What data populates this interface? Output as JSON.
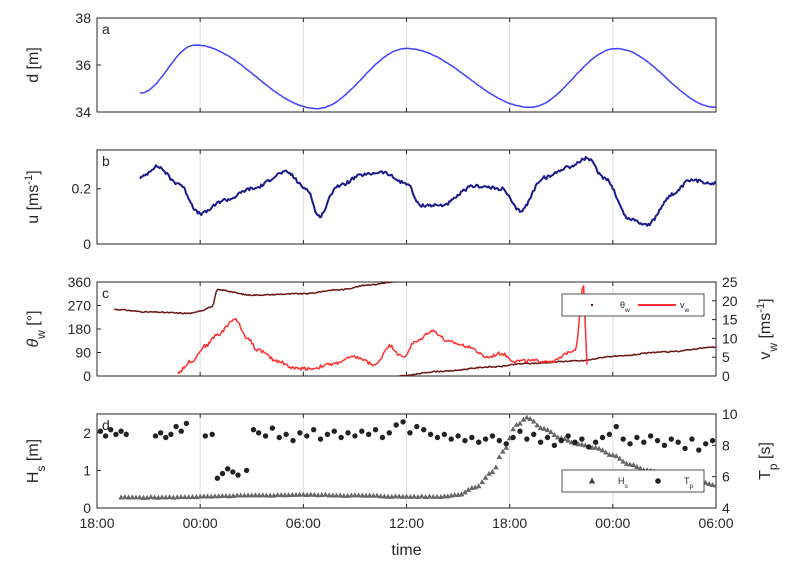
{
  "chart_data": [
    {
      "type": "line",
      "panel_label": "a",
      "ylabel": "d [m]",
      "ylim": [
        34,
        38
      ],
      "yticks": [
        "34",
        "36",
        "38"
      ],
      "grid": "vertical",
      "series": [
        {
          "color": "#4040ff",
          "x": [
            -3.5,
            -0.3,
            6.8,
            12.0,
            19.2,
            24.2,
            30.0
          ],
          "y": [
            34.8,
            36.85,
            34.15,
            36.7,
            34.2,
            36.7,
            34.2
          ]
        }
      ]
    },
    {
      "type": "line",
      "panel_label": "b",
      "ylabel": "u [ms-1]",
      "ylim": [
        0,
        0.34
      ],
      "yticks": [
        "0",
        "0.2"
      ],
      "grid": "vertical",
      "series": [
        {
          "color": "#1a1a8c",
          "x": [
            -3.5,
            -2.5,
            -1.3,
            0.0,
            1.5,
            3.0,
            5.0,
            6.2,
            6.9,
            8.0,
            9.5,
            10.5,
            12.0,
            12.8,
            14.0,
            16.0,
            17.5,
            18.6,
            20.0,
            21.5,
            22.5,
            23.5,
            25.0,
            26.0,
            27.5,
            28.5,
            30.0
          ],
          "y": [
            0.24,
            0.28,
            0.22,
            0.11,
            0.16,
            0.2,
            0.26,
            0.2,
            0.1,
            0.21,
            0.25,
            0.26,
            0.22,
            0.14,
            0.14,
            0.21,
            0.2,
            0.12,
            0.24,
            0.28,
            0.31,
            0.24,
            0.09,
            0.07,
            0.18,
            0.23,
            0.22
          ]
        }
      ]
    },
    {
      "type": "line",
      "panel_label": "c",
      "ylabel": "θw [°]",
      "ylabel2": "vw [ms-1]",
      "ylim": [
        0,
        360
      ],
      "ylim2": [
        0,
        25
      ],
      "yticks": [
        "0",
        "90",
        "180",
        "270",
        "360"
      ],
      "yticks2": [
        "0",
        "5",
        "10",
        "15",
        "20",
        "25"
      ],
      "grid": "vertical",
      "legend": {
        "position": "right",
        "entries": [
          "θw",
          "vw"
        ]
      },
      "series": [
        {
          "name": "θw",
          "axis": "left",
          "color": "#6b1515",
          "x": [
            -5.0,
            -3.0,
            -0.5,
            0.0,
            0.7,
            1.0,
            3.0,
            6.0,
            8.0,
            10.0,
            11.0,
            11.4,
            11.5,
            14.0,
            17.0,
            19.0,
            22.0,
            24.0,
            27.0,
            30.0
          ],
          "y": [
            255,
            245,
            240,
            250,
            265,
            330,
            310,
            315,
            330,
            350,
            358,
            360,
            0,
            18,
            35,
            48,
            58,
            75,
            92,
            110
          ]
        },
        {
          "name": "vw",
          "axis": "right",
          "color": "#ff3030",
          "x": [
            -1.3,
            -0.5,
            0.3,
            1.0,
            2.0,
            2.8,
            3.3,
            4.5,
            5.5,
            6.5,
            7.5,
            9.0,
            10.2,
            11.0,
            11.8,
            12.5,
            13.5,
            14.5,
            15.5,
            16.7,
            17.5,
            18.3,
            19.0,
            20.5,
            21.8,
            22.3,
            22.5
          ],
          "y": [
            1,
            4,
            8,
            11,
            15,
            10,
            7,
            4,
            2,
            2,
            3,
            5,
            3,
            8,
            5,
            9,
            12,
            9,
            8,
            5,
            6,
            4,
            4,
            4,
            7,
            24,
            3
          ]
        }
      ]
    },
    {
      "type": "scatter",
      "panel_label": "d",
      "ylabel": "Hs [m]",
      "ylabel2": "Tp [s]",
      "xlabel": "time",
      "ylim": [
        0,
        2.5
      ],
      "ylim2": [
        4,
        10
      ],
      "yticks": [
        "0",
        "1",
        "2"
      ],
      "yticks2": [
        "4",
        "6",
        "8",
        "10"
      ],
      "xticks": [
        "18:00",
        "00:00",
        "06:00",
        "12:00",
        "18:00",
        "00:00",
        "06:00"
      ],
      "xlim": [
        -6,
        30
      ],
      "grid": "vertical",
      "legend": {
        "position": "right",
        "entries": [
          "Hs",
          "Tp"
        ]
      },
      "series": [
        {
          "name": "Hs",
          "axis": "left",
          "marker": "triangle",
          "color": "#666666",
          "x": [
            -4.6,
            -2.0,
            0.0,
            3.0,
            6.0,
            9.0,
            12.0,
            14.0,
            15.0,
            16.0,
            17.0,
            17.6,
            18.4,
            19.0,
            20.0,
            21.0,
            22.0,
            23.0,
            24.0,
            25.0,
            26.0,
            27.0,
            28.0,
            29.0,
            30.0
          ],
          "y": [
            0.28,
            0.28,
            0.3,
            0.33,
            0.35,
            0.33,
            0.3,
            0.3,
            0.35,
            0.55,
            0.95,
            1.5,
            2.2,
            2.4,
            2.1,
            1.85,
            1.7,
            1.6,
            1.4,
            1.15,
            1.0,
            0.9,
            0.8,
            0.7,
            0.6
          ]
        },
        {
          "name": "Tp",
          "axis": "right",
          "marker": "circle",
          "color": "#222222",
          "x": [
            -5.8,
            -5.5,
            -5.2,
            -4.9,
            -4.6,
            -4.3,
            -2.6,
            -2.3,
            -2.0,
            -1.7,
            -1.4,
            -1.1,
            -0.8,
            0.3,
            0.7,
            1.0,
            1.3,
            1.6,
            1.9,
            2.2,
            2.7,
            3.1,
            3.4,
            3.8,
            4.2,
            4.6,
            5.0,
            5.4,
            5.8,
            6.2,
            6.6,
            7.0,
            7.4,
            7.8,
            8.2,
            8.6,
            9.0,
            9.4,
            9.8,
            10.2,
            10.6,
            11.0,
            11.4,
            11.8,
            12.2,
            12.6,
            13.0,
            13.4,
            13.8,
            14.2,
            14.6,
            15.0,
            15.4,
            15.8,
            16.2,
            16.6,
            17.0,
            17.4,
            17.8,
            18.2,
            18.6,
            19.0,
            19.4,
            19.8,
            20.2,
            20.6,
            21.0,
            21.4,
            21.8,
            22.2,
            22.6,
            23.0,
            23.4,
            23.8,
            24.2,
            24.6,
            25.0,
            25.4,
            25.8,
            26.2,
            26.6,
            27.0,
            27.4,
            27.8,
            28.2,
            28.6,
            29.0,
            29.4,
            29.8
          ],
          "y": [
            8.9,
            8.6,
            9.0,
            8.7,
            8.9,
            8.7,
            8.6,
            8.8,
            8.5,
            8.7,
            9.2,
            8.9,
            9.4,
            8.6,
            8.7,
            5.9,
            6.2,
            6.5,
            6.3,
            6.1,
            6.4,
            9.0,
            8.8,
            8.6,
            9.1,
            8.5,
            8.7,
            8.3,
            8.8,
            8.6,
            9.0,
            8.4,
            8.7,
            8.9,
            8.5,
            8.8,
            8.6,
            8.9,
            8.7,
            9.0,
            8.5,
            8.8,
            9.3,
            9.5,
            8.8,
            9.2,
            9.0,
            8.7,
            8.5,
            8.7,
            8.4,
            8.6,
            8.3,
            8.5,
            8.2,
            8.4,
            8.6,
            8.3,
            8.1,
            8.5,
            8.9,
            8.4,
            8.7,
            8.2,
            8.5,
            8.0,
            8.3,
            8.6,
            8.2,
            8.4,
            7.9,
            8.2,
            8.5,
            8.7,
            9.2,
            8.4,
            8.1,
            8.5,
            8.2,
            8.6,
            8.3,
            8.0,
            8.4,
            8.2,
            7.8,
            8.4,
            7.7,
            8.1,
            8.3
          ]
        }
      ]
    }
  ]
}
